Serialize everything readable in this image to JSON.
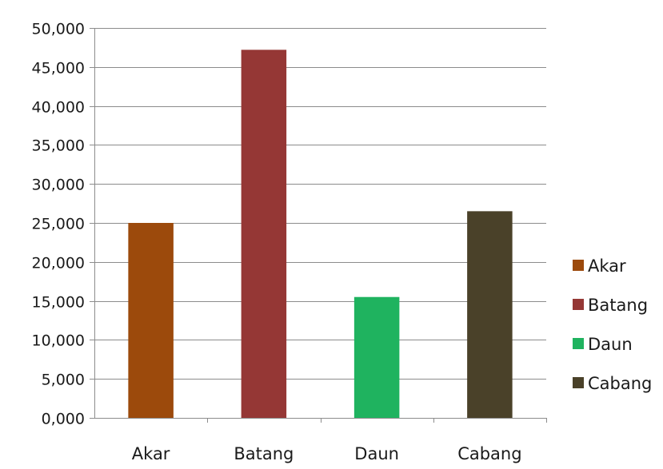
{
  "chart_data": {
    "type": "bar",
    "categories": [
      "Akar",
      "Batang",
      "Daun",
      "Cabang"
    ],
    "values": [
      25.0,
      47.2,
      15.5,
      26.5
    ],
    "colors": [
      "#9c4a0c",
      "#953735",
      "#1fb35f",
      "#4a4129"
    ],
    "ylim": [
      0,
      50
    ],
    "yticks": [
      0,
      5,
      10,
      15,
      20,
      25,
      30,
      35,
      40,
      45,
      50
    ],
    "ytick_labels": [
      "0,000",
      "5,000",
      "10,000",
      "15,000",
      "20,000",
      "25,000",
      "30,000",
      "35,000",
      "40,000",
      "45,000",
      "50,000"
    ],
    "grid": true,
    "legend": {
      "position": "right",
      "entries": [
        "Akar",
        "Batang",
        "Daun",
        "Cabang"
      ]
    },
    "title": "",
    "xlabel": "",
    "ylabel": ""
  }
}
